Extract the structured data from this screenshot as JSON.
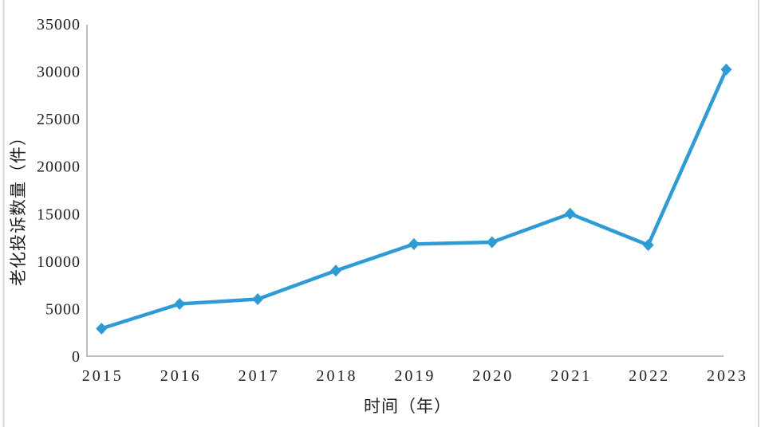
{
  "chart_data": {
    "type": "line",
    "title": "",
    "xlabel": "时间（年）",
    "ylabel": "老化投诉数量（件）",
    "categories": [
      "2015",
      "2016",
      "2017",
      "2018",
      "2019",
      "2020",
      "2021",
      "2022",
      "2023"
    ],
    "series": [
      {
        "name": "老化投诉数量",
        "values": [
          2900,
          5500,
          6000,
          9000,
          11800,
          12000,
          15000,
          11700,
          30200
        ]
      }
    ],
    "ylim": [
      0,
      35000
    ],
    "ytick_interval": 5000,
    "yticks": [
      0,
      5000,
      10000,
      15000,
      20000,
      25000,
      30000,
      35000
    ],
    "grid": false,
    "legend_position": "none",
    "marker": "diamond",
    "colors": {
      "series": "#2E9BD5",
      "axis": "#C0C0C0",
      "text": "#1F1F1F",
      "page_border": "#D8D8D8",
      "background": "#FFFFFF"
    }
  }
}
